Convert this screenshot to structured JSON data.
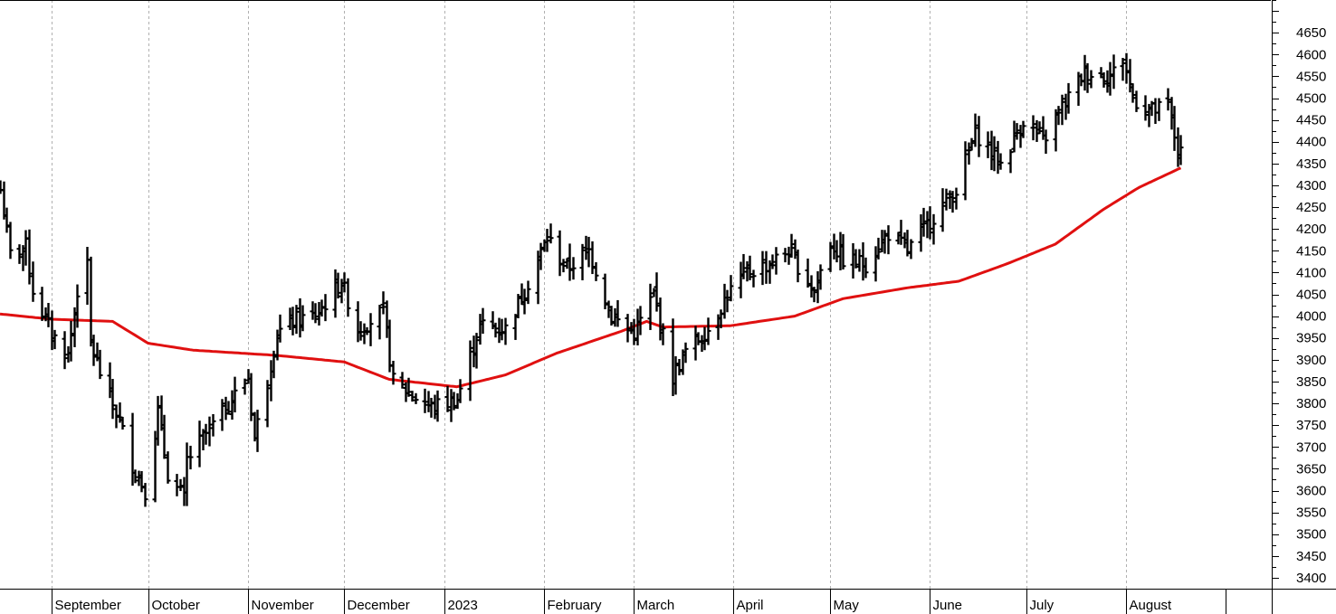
{
  "chart_data": {
    "type": "ohlc",
    "title": "",
    "xlabel": "",
    "ylabel": "",
    "y_axis_position": "right",
    "ylim": [
      3375,
      4725
    ],
    "y_ticks": [
      3400,
      3450,
      3500,
      3550,
      3600,
      3650,
      3700,
      3750,
      3800,
      3850,
      3900,
      3950,
      4000,
      4050,
      4100,
      4150,
      4200,
      4250,
      4300,
      4350,
      4400,
      4450,
      4500,
      4550,
      4600,
      4650
    ],
    "grid": "vertical-dotted",
    "colors": {
      "price_bars": "#000000",
      "moving_average": "#e01010",
      "grid": "#b0b0b0"
    },
    "month_labels": [
      {
        "label": "September",
        "date": "2022-09-01"
      },
      {
        "label": "October",
        "date": "2022-10-01"
      },
      {
        "label": "November",
        "date": "2022-11-01"
      },
      {
        "label": "December",
        "date": "2022-12-01"
      },
      {
        "label": "2023",
        "date": "2023-01-01"
      },
      {
        "label": "February",
        "date": "2023-02-01"
      },
      {
        "label": "March",
        "date": "2023-03-01"
      },
      {
        "label": "April",
        "date": "2023-04-01"
      },
      {
        "label": "May",
        "date": "2023-05-01"
      },
      {
        "label": "June",
        "date": "2023-06-01"
      },
      {
        "label": "July",
        "date": "2023-07-01"
      },
      {
        "label": "August",
        "date": "2023-08-01"
      }
    ],
    "x_range": [
      "2022-08-16",
      "2023-09-15"
    ],
    "price_series_anchors": [
      [
        "2022-08-16",
        4290
      ],
      [
        "2022-08-19",
        4140
      ],
      [
        "2022-08-24",
        4160
      ],
      [
        "2022-08-26",
        4060
      ],
      [
        "2022-09-01",
        3960
      ],
      [
        "2022-09-06",
        3910
      ],
      [
        "2022-09-09",
        4060
      ],
      [
        "2022-09-12",
        4110
      ],
      [
        "2022-09-13",
        3940
      ],
      [
        "2022-09-16",
        3870
      ],
      [
        "2022-09-22",
        3760
      ],
      [
        "2022-09-26",
        3660
      ],
      [
        "2022-09-30",
        3600
      ],
      [
        "2022-10-04",
        3780
      ],
      [
        "2022-10-07",
        3640
      ],
      [
        "2022-10-12",
        3580
      ],
      [
        "2022-10-13",
        3670
      ],
      [
        "2022-10-21",
        3750
      ],
      [
        "2022-10-27",
        3810
      ],
      [
        "2022-11-01",
        3860
      ],
      [
        "2022-11-03",
        3720
      ],
      [
        "2022-11-10",
        3960
      ],
      [
        "2022-11-15",
        3990
      ],
      [
        "2022-11-22",
        4000
      ],
      [
        "2022-11-30",
        4080
      ],
      [
        "2022-12-05",
        3970
      ],
      [
        "2022-12-13",
        4010
      ],
      [
        "2022-12-16",
        3850
      ],
      [
        "2022-12-22",
        3820
      ],
      [
        "2022-12-28",
        3790
      ],
      [
        "2023-01-05",
        3810
      ],
      [
        "2023-01-12",
        3980
      ],
      [
        "2023-01-20",
        3970
      ],
      [
        "2023-01-26",
        4060
      ],
      [
        "2023-02-02",
        4180
      ],
      [
        "2023-02-08",
        4110
      ],
      [
        "2023-02-15",
        4150
      ],
      [
        "2023-02-22",
        4000
      ],
      [
        "2023-03-01",
        3960
      ],
      [
        "2023-03-07",
        4050
      ],
      [
        "2023-03-13",
        3860
      ],
      [
        "2023-03-17",
        3920
      ],
      [
        "2023-03-24",
        3970
      ],
      [
        "2023-03-30",
        4050
      ],
      [
        "2023-04-05",
        4100
      ],
      [
        "2023-04-12",
        4120
      ],
      [
        "2023-04-18",
        4150
      ],
      [
        "2023-04-26",
        4060
      ],
      [
        "2023-05-01",
        4170
      ],
      [
        "2023-05-05",
        4130
      ],
      [
        "2023-05-12",
        4120
      ],
      [
        "2023-05-19",
        4190
      ],
      [
        "2023-05-25",
        4150
      ],
      [
        "2023-06-01",
        4220
      ],
      [
        "2023-06-09",
        4290
      ],
      [
        "2023-06-15",
        4420
      ],
      [
        "2023-06-23",
        4350
      ],
      [
        "2023-06-30",
        4450
      ],
      [
        "2023-07-06",
        4400
      ],
      [
        "2023-07-12",
        4480
      ],
      [
        "2023-07-19",
        4560
      ],
      [
        "2023-07-27",
        4550
      ],
      [
        "2023-07-31",
        4590
      ],
      [
        "2023-08-03",
        4500
      ],
      [
        "2023-08-09",
        4470
      ],
      [
        "2023-08-14",
        4480
      ],
      [
        "2023-08-17",
        4380
      ],
      [
        "2023-08-18",
        4370
      ]
    ],
    "moving_average_anchors": [
      [
        "2022-08-16",
        4005
      ],
      [
        "2022-09-01",
        3993
      ],
      [
        "2022-09-20",
        3988
      ],
      [
        "2022-10-01",
        3938
      ],
      [
        "2022-10-15",
        3922
      ],
      [
        "2022-11-10",
        3910
      ],
      [
        "2022-12-01",
        3895
      ],
      [
        "2022-12-15",
        3855
      ],
      [
        "2023-01-05",
        3838
      ],
      [
        "2023-01-20",
        3865
      ],
      [
        "2023-02-05",
        3915
      ],
      [
        "2023-02-25",
        3965
      ],
      [
        "2023-03-05",
        3988
      ],
      [
        "2023-03-10",
        3975
      ],
      [
        "2023-03-31",
        3978
      ],
      [
        "2023-04-20",
        4000
      ],
      [
        "2023-05-05",
        4040
      ],
      [
        "2023-05-25",
        4065
      ],
      [
        "2023-06-10",
        4080
      ],
      [
        "2023-06-25",
        4120
      ],
      [
        "2023-07-10",
        4165
      ],
      [
        "2023-07-25",
        4245
      ],
      [
        "2023-08-05",
        4295
      ],
      [
        "2023-08-18",
        4340
      ]
    ]
  }
}
